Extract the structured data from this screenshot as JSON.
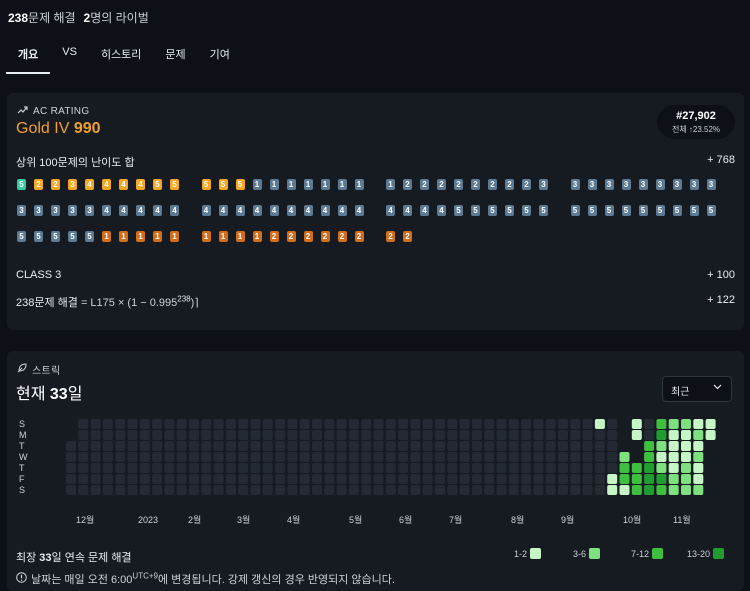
{
  "stats": {
    "solved_count": "238",
    "solved_label": "문제 해결",
    "rival_count": "2",
    "rival_label": "명의 라이벌"
  },
  "tabs": [
    "개요",
    "VS",
    "히스토리",
    "문제",
    "기여"
  ],
  "rating": {
    "section_label": "AC RATING",
    "tier": "Gold IV",
    "value": "990",
    "rank": "#27,902",
    "rank_sub": "전체 ↑23.52%",
    "top100_label": "상위 100문제의 난이도 합",
    "top100_value": "+ 768",
    "class_label": "CLASS 3",
    "class_value": "+ 100",
    "solved_formula_prefix": "238문제 해결",
    "solved_formula_mid": " = L175 × (1 − 0.995",
    "solved_formula_exp": "238",
    "solved_formula_end": ")⌉",
    "solved_value": "+ 122"
  },
  "badges": {
    "rows": [
      [
        [
          "p",
          "5"
        ],
        [
          "g",
          "2"
        ],
        [
          "g",
          "2"
        ],
        [
          "g",
          "3"
        ],
        [
          "g",
          "4"
        ],
        [
          "g",
          "4"
        ],
        [
          "g",
          "4"
        ],
        [
          "g",
          "4"
        ],
        [
          "g",
          "5"
        ],
        [
          "g",
          "5"
        ],
        [
          "g",
          "5"
        ],
        [
          "g",
          "5"
        ],
        [
          "g",
          "5"
        ],
        [
          "s",
          "1"
        ],
        [
          "s",
          "1"
        ],
        [
          "s",
          "1"
        ],
        [
          "s",
          "1"
        ],
        [
          "s",
          "1"
        ],
        [
          "s",
          "1"
        ],
        [
          "s",
          "1"
        ],
        [
          "s",
          "1"
        ],
        [
          "s",
          "2"
        ],
        [
          "s",
          "2"
        ],
        [
          "s",
          "2"
        ],
        [
          "s",
          "2"
        ],
        [
          "s",
          "2"
        ],
        [
          "s",
          "2"
        ],
        [
          "s",
          "2"
        ],
        [
          "s",
          "2"
        ],
        [
          "s",
          "3"
        ],
        [
          "s",
          "3"
        ],
        [
          "s",
          "3"
        ],
        [
          "s",
          "3"
        ],
        [
          "s",
          "3"
        ],
        [
          "s",
          "3"
        ],
        [
          "s",
          "3"
        ],
        [
          "s",
          "3"
        ],
        [
          "s",
          "3"
        ],
        [
          "s",
          "3"
        ]
      ],
      [
        [
          "s",
          "3"
        ],
        [
          "s",
          "3"
        ],
        [
          "s",
          "3"
        ],
        [
          "s",
          "3"
        ],
        [
          "s",
          "3"
        ],
        [
          "s",
          "4"
        ],
        [
          "s",
          "4"
        ],
        [
          "s",
          "4"
        ],
        [
          "s",
          "4"
        ],
        [
          "s",
          "4"
        ],
        [
          "s",
          "4"
        ],
        [
          "s",
          "4"
        ],
        [
          "s",
          "4"
        ],
        [
          "s",
          "4"
        ],
        [
          "s",
          "4"
        ],
        [
          "s",
          "4"
        ],
        [
          "s",
          "4"
        ],
        [
          "s",
          "4"
        ],
        [
          "s",
          "4"
        ],
        [
          "s",
          "4"
        ],
        [
          "s",
          "4"
        ],
        [
          "s",
          "4"
        ],
        [
          "s",
          "4"
        ],
        [
          "s",
          "4"
        ],
        [
          "s",
          "5"
        ],
        [
          "s",
          "5"
        ],
        [
          "s",
          "5"
        ],
        [
          "s",
          "5"
        ],
        [
          "s",
          "5"
        ],
        [
          "s",
          "5"
        ],
        [
          "s",
          "5"
        ],
        [
          "s",
          "5"
        ],
        [
          "s",
          "5"
        ],
        [
          "s",
          "5"
        ],
        [
          "s",
          "5"
        ],
        [
          "s",
          "5"
        ],
        [
          "s",
          "5"
        ],
        [
          "s",
          "5"
        ],
        [
          "s",
          "5"
        ]
      ],
      [
        [
          "s",
          "5"
        ],
        [
          "s",
          "5"
        ],
        [
          "s",
          "5"
        ],
        [
          "s",
          "5"
        ],
        [
          "s",
          "5"
        ],
        [
          "b",
          "1"
        ],
        [
          "b",
          "1"
        ],
        [
          "b",
          "1"
        ],
        [
          "b",
          "1"
        ],
        [
          "b",
          "1"
        ],
        [
          "b",
          "1"
        ],
        [
          "b",
          "1"
        ],
        [
          "b",
          "1"
        ],
        [
          "b",
          "1"
        ],
        [
          "b",
          "2"
        ],
        [
          "b",
          "2"
        ],
        [
          "b",
          "2"
        ],
        [
          "b",
          "2"
        ],
        [
          "b",
          "2"
        ],
        [
          "b",
          "2"
        ],
        [
          "b",
          "2"
        ],
        [
          "b",
          "2"
        ]
      ]
    ]
  },
  "streak": {
    "section_label": "스트릭",
    "title_prefix": "현재 ",
    "title_value": "33",
    "title_suffix": "일",
    "dropdown": "최근",
    "days": [
      "S",
      "M",
      "T",
      "W",
      "T",
      "F",
      "S"
    ],
    "months": [
      "12월",
      "2023",
      "2월",
      "3월",
      "4월",
      "5월",
      "6월",
      "7월",
      "8월",
      "9월",
      "10월",
      "11월"
    ],
    "max_prefix": "최장 ",
    "max_value": "33",
    "max_suffix": "일 연속 문제 해결",
    "note_pre": "날짜는 매일 오전 6:00",
    "note_sup": "UTC+9",
    "note_post": "에 변경됩니다. 강제 갱신의 경우 반영되지 않습니다.",
    "legend": [
      {
        "label": "1-2",
        "color": "#c6f6c6"
      },
      {
        "label": "3-6",
        "color": "#7ee07e"
      },
      {
        "label": "7-12",
        "color": "#3fbf3f"
      },
      {
        "label": "13-20",
        "color": "#1f9e2f"
      }
    ],
    "colors": {
      "empty": "#232a33",
      "l1": "#c6f6c6",
      "l2": "#7ee07e",
      "l3": "#3fbf3f",
      "l4": "#1f9e2f"
    }
  }
}
